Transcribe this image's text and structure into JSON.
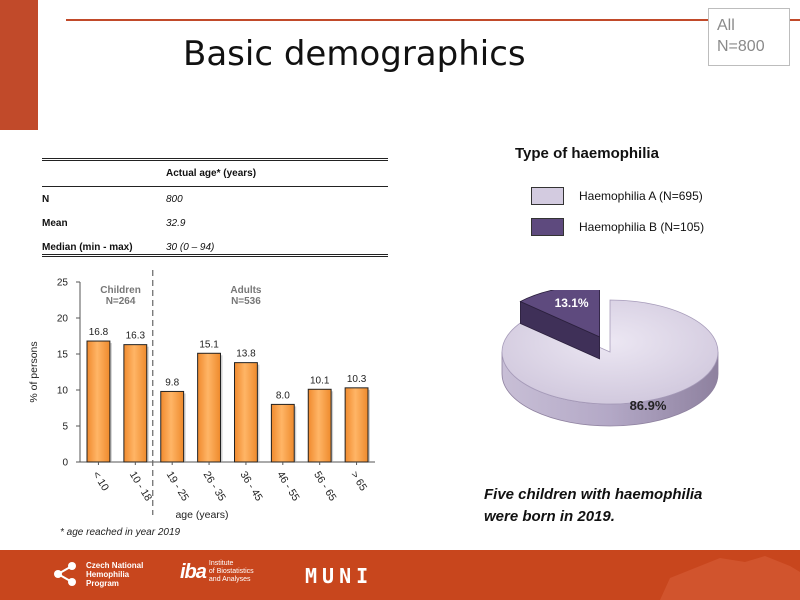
{
  "slide": {
    "title": "Basic demographics",
    "badge_line1": "All",
    "badge_line2": "N=800"
  },
  "table": {
    "header": "Actual age* (years)",
    "rows": [
      {
        "label": "N",
        "value": "800"
      },
      {
        "label": "Mean",
        "value": "32.9"
      },
      {
        "label": "Median (min - max)",
        "value": "30 (0 – 94)"
      }
    ]
  },
  "footnote": "* age reached in year 2019",
  "colors": {
    "bar_fill": "#f5a04a",
    "bar_stroke": "#222222",
    "pie_a": "#d3cbe0",
    "pie_b": "#5e4a7e",
    "accent": "#c8461d"
  },
  "chart_data": [
    {
      "type": "bar",
      "categories": [
        "< 10",
        "10 - 18",
        "19 - 25",
        "26 - 35",
        "36 - 45",
        "46 - 55",
        "56 - 65",
        "> 65"
      ],
      "values": [
        16.8,
        16.3,
        9.8,
        15.1,
        13.8,
        8.0,
        10.1,
        10.3
      ],
      "data_labels": [
        "16.8",
        "16.3",
        "9.8",
        "15.1",
        "13.8",
        "8.0",
        "10.1",
        "10.3"
      ],
      "xlabel": "age (years)",
      "ylabel": "% of persons",
      "ylim": [
        0,
        25
      ],
      "yticks": [
        "0",
        "5",
        "10",
        "15",
        "20",
        "25"
      ],
      "groups": [
        {
          "label": "Children",
          "n": "N=264"
        },
        {
          "label": "Adults",
          "n": "N=536"
        }
      ],
      "grid": false
    },
    {
      "type": "pie",
      "title": "Type of haemophilia",
      "legend": [
        "Haemophilia A (N=695)",
        "Haemophilia B (N=105)"
      ],
      "values": [
        86.9,
        13.1
      ],
      "data_labels": [
        "86.9%",
        "13.1%"
      ],
      "legend_position": "top"
    }
  ],
  "note": {
    "line1": "Five children with haemophilia",
    "line2": "were born in 2019."
  },
  "footer": {
    "logo1_line1": "Czech National",
    "logo1_line2": "Hemophilia",
    "logo1_line3": "Program",
    "logo2_mark": "iba",
    "logo2_line1": "Institute",
    "logo2_line2": "of Biostatistics",
    "logo2_line3": "and Analyses",
    "logo3": "MUNI"
  }
}
